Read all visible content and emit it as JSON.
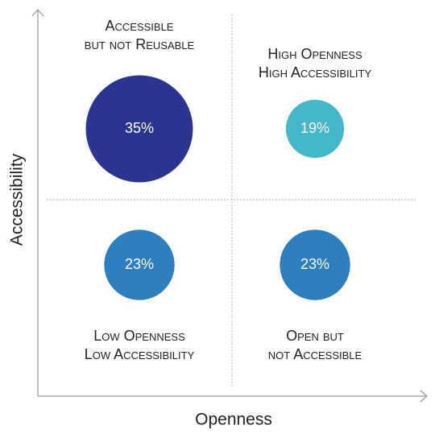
{
  "chart_data": {
    "type": "quadrant-bubble",
    "x_label": "Openness",
    "y_label": "Accessibility",
    "quadrants": [
      {
        "position": "top-left",
        "label": [
          "Accessible",
          "but not Reusable"
        ],
        "value": 35,
        "value_label": "35%",
        "color": "#2a3590"
      },
      {
        "position": "top-right",
        "label": [
          "High Openness",
          "High Accessibility"
        ],
        "value": 19,
        "value_label": "19%",
        "color": "#44b8c8"
      },
      {
        "position": "bottom-left",
        "label": [
          "Low Openness",
          "Low Accessibility"
        ],
        "value": 23,
        "value_label": "23%",
        "color": "#2e7fbf"
      },
      {
        "position": "bottom-right",
        "label": [
          "Open but",
          "not Accessible"
        ],
        "value": 23,
        "value_label": "23%",
        "color": "#2e7fbf"
      }
    ]
  }
}
